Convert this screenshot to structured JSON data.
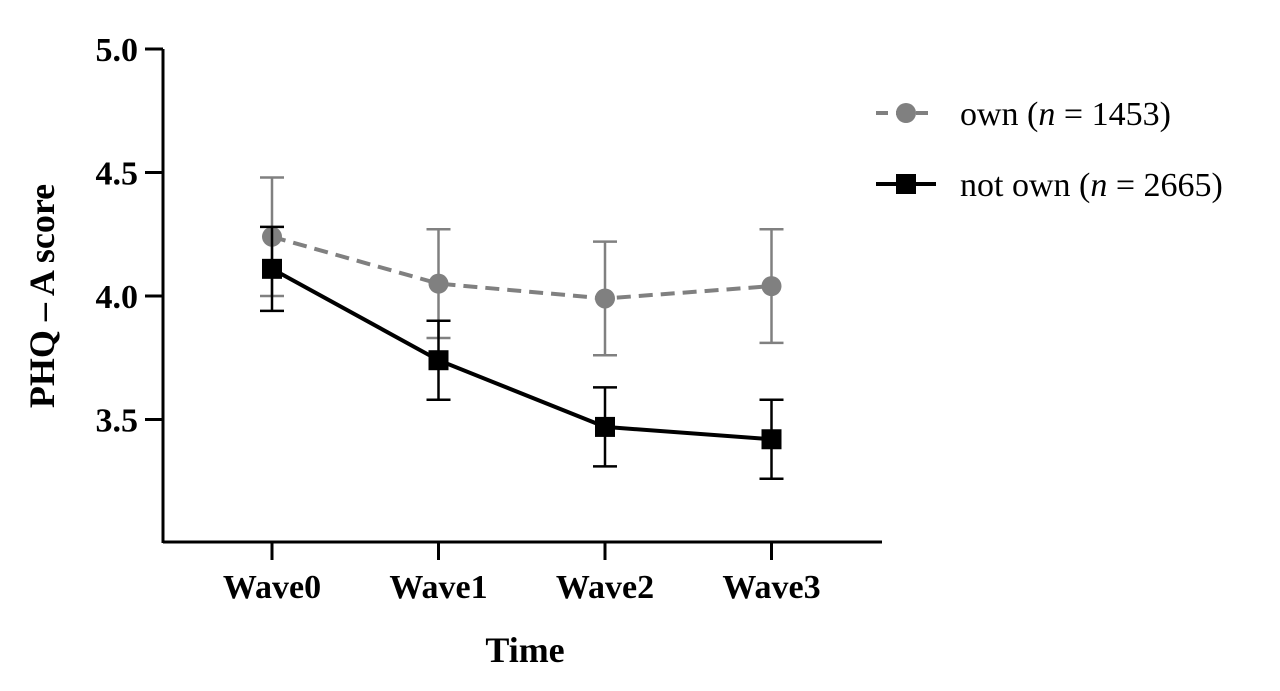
{
  "chart_data": {
    "type": "line",
    "title": "",
    "xlabel": "Time",
    "ylabel": "PHQ – A score",
    "categories": [
      "Wave0",
      "Wave1",
      "Wave2",
      "Wave3"
    ],
    "ylim": [
      3.0,
      5.0
    ],
    "yticks": [
      3.5,
      4.0,
      4.5,
      5.0
    ],
    "ytick_labels": [
      "3.5",
      "4.0",
      "4.5",
      "5.0"
    ],
    "grid": false,
    "legend_position": "top-right",
    "series": [
      {
        "name": "own (n = 1453)",
        "legend_prefix": "own (",
        "legend_n": "n",
        "legend_suffix": " = 1453)",
        "color": "#808080",
        "line_style": "dashed",
        "marker": "circle",
        "values": [
          4.24,
          4.05,
          3.99,
          4.04
        ],
        "error_upper": [
          4.48,
          4.27,
          4.22,
          4.27
        ],
        "error_lower": [
          4.0,
          3.83,
          3.76,
          3.81
        ]
      },
      {
        "name": "not own (n = 2665)",
        "legend_prefix": "not own (",
        "legend_n": "n",
        "legend_suffix": " = 2665)",
        "color": "#000000",
        "line_style": "solid",
        "marker": "square",
        "values": [
          4.11,
          3.74,
          3.47,
          3.42
        ],
        "error_upper": [
          4.28,
          3.9,
          3.63,
          3.58
        ],
        "error_lower": [
          3.94,
          3.58,
          3.31,
          3.26
        ]
      }
    ]
  }
}
